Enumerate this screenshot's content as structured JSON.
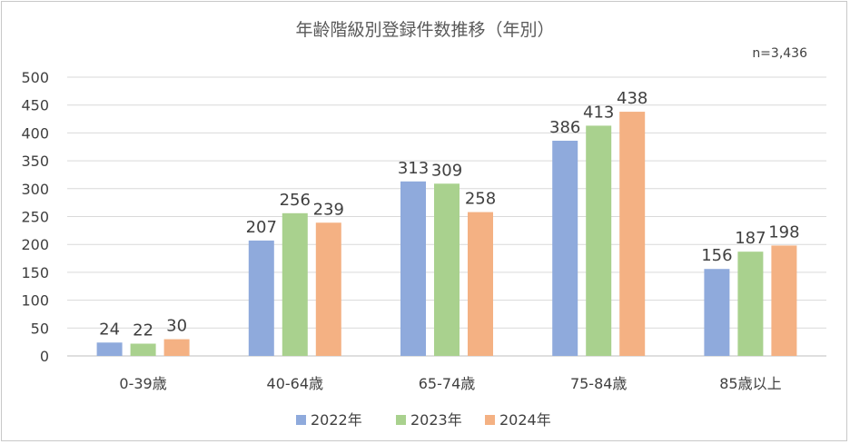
{
  "chart_data": {
    "type": "bar",
    "title": "年齢階級別登録件数推移（年別）",
    "note": "n=3,436",
    "xlabel": "",
    "ylabel": "",
    "ylim": [
      0,
      500
    ],
    "y_ticks": [
      0,
      50,
      100,
      150,
      200,
      250,
      300,
      350,
      400,
      450,
      500
    ],
    "grid": true,
    "legend_position": "bottom",
    "categories": [
      "0-39歳",
      "40-64歳",
      "65-74歳",
      "75-84歳",
      "85歳以上"
    ],
    "series": [
      {
        "name": "2022年",
        "color": "#8FAADC",
        "values": [
          24,
          207,
          313,
          386,
          156
        ]
      },
      {
        "name": "2023年",
        "color": "#A9D18E",
        "values": [
          22,
          256,
          309,
          413,
          187
        ]
      },
      {
        "name": "2024年",
        "color": "#F4B183",
        "values": [
          30,
          239,
          258,
          438,
          198
        ]
      }
    ]
  }
}
